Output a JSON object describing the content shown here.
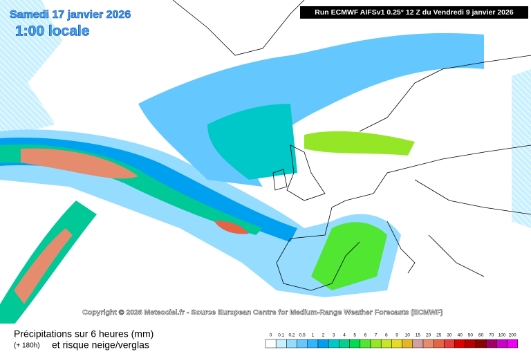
{
  "header": {
    "date": "Samedi 17 janvier 2026",
    "time": "1:00 locale",
    "run": "Run ECMWF AIFSv1 0.25° 12 Z du Vendredi 9 janvier 2026"
  },
  "copyright": "Copyright © 2026 Meteociel.fr - Source European Centre for Medium-Range Weather Forecasts (ECMWF)",
  "legend": {
    "title": "Précipitations sur 6 heures (mm)",
    "lead": "(+ 180h)",
    "subtitle": "et risque neige/verglas",
    "items": [
      {
        "value": 0,
        "color": "#ffffff"
      },
      {
        "value": 0.1,
        "color": "#c8f0ff"
      },
      {
        "value": 0.2,
        "color": "#96dcff"
      },
      {
        "value": 0.5,
        "color": "#64c8ff"
      },
      {
        "value": 1,
        "color": "#32b4ff"
      },
      {
        "value": 2,
        "color": "#00a0f0"
      },
      {
        "value": 3,
        "color": "#00c8c8"
      },
      {
        "value": 4,
        "color": "#00d28c"
      },
      {
        "value": 5,
        "color": "#00dc50"
      },
      {
        "value": 6,
        "color": "#50e632"
      },
      {
        "value": 7,
        "color": "#96e628"
      },
      {
        "value": 8,
        "color": "#c8e628"
      },
      {
        "value": 9,
        "color": "#e6dc28"
      },
      {
        "value": 10,
        "color": "#e6b428"
      },
      {
        "value": 15,
        "color": "#d2a0a0"
      },
      {
        "value": 20,
        "color": "#e68c6e"
      },
      {
        "value": 25,
        "color": "#e66446"
      },
      {
        "value": 30,
        "color": "#e63c3c"
      },
      {
        "value": 40,
        "color": "#dc0000"
      },
      {
        "value": 50,
        "color": "#b40000"
      },
      {
        "value": 60,
        "color": "#8c0000"
      },
      {
        "value": 70,
        "color": "#a00064"
      },
      {
        "value": 100,
        "color": "#c800c8"
      },
      {
        "value": 200,
        "color": "#f000f0"
      }
    ]
  }
}
